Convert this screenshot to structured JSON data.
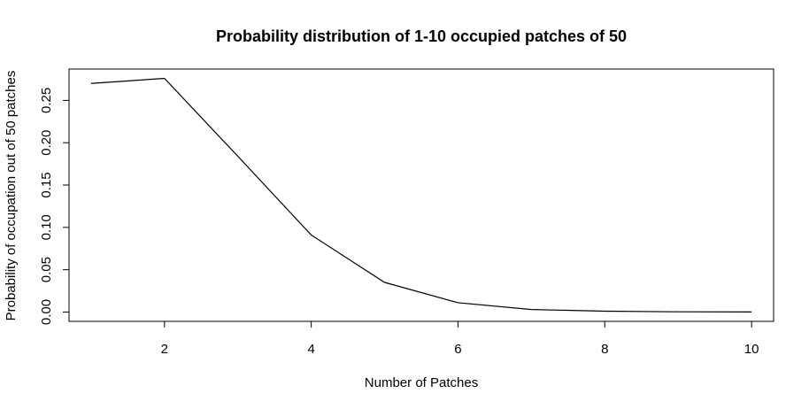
{
  "chart_data": {
    "type": "line",
    "title": "Probability distribution of 1-10 occupied patches of 50",
    "xlabel": "Number of Patches",
    "ylabel": "Probability of occupation out of 50 patches",
    "x": [
      1,
      2,
      3,
      4,
      5,
      6,
      7,
      8,
      9,
      10
    ],
    "series": [
      {
        "values": [
          0.27,
          0.276,
          0.184,
          0.091,
          0.035,
          0.011,
          0.003,
          0.001,
          0.0003,
          0.0001
        ]
      }
    ],
    "xlim": [
      0.7,
      10.3
    ],
    "ylim": [
      -0.011,
      0.287
    ],
    "xticks": [
      2,
      4,
      6,
      8,
      10
    ],
    "xtick_labels": [
      "2",
      "4",
      "6",
      "8",
      "10"
    ],
    "yticks": [
      0.0,
      0.05,
      0.1,
      0.15,
      0.2,
      0.25
    ],
    "ytick_labels": [
      "0.00",
      "0.05",
      "0.10",
      "0.15",
      "0.20",
      "0.25"
    ],
    "grid": false,
    "legend": "none",
    "line_color": "#000000"
  }
}
